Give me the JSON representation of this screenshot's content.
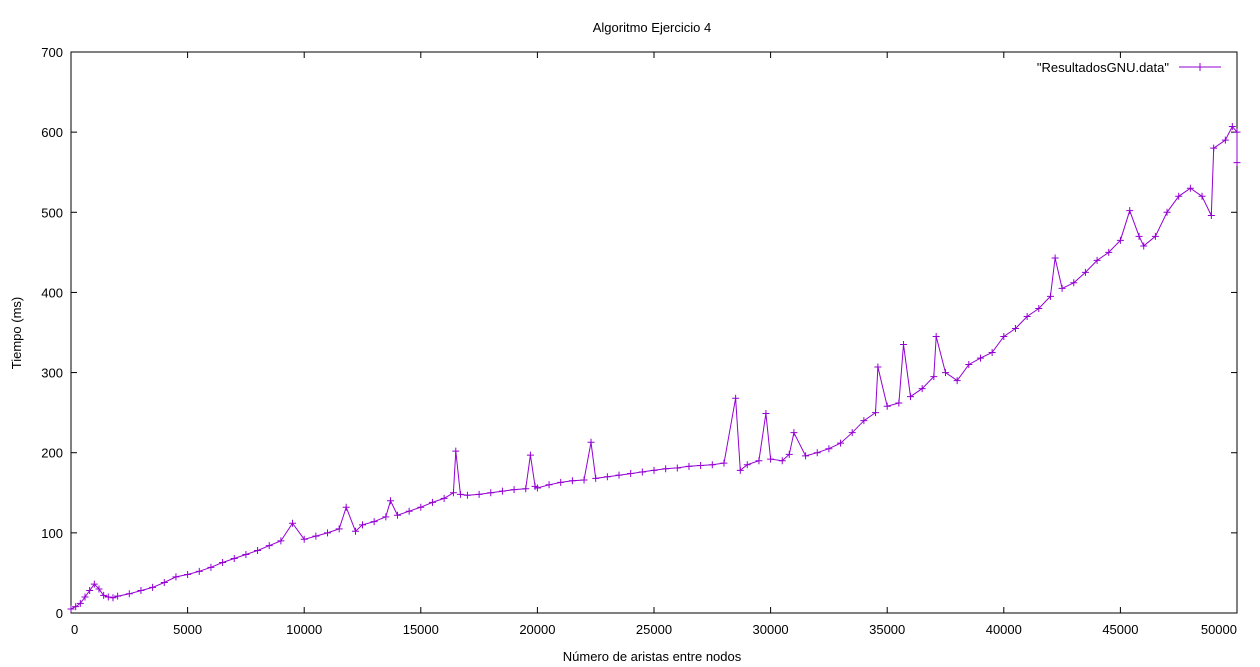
{
  "chart_data": {
    "type": "line",
    "title": "Algoritmo Ejercicio 4",
    "xlabel": "Número de aristas entre nodos",
    "ylabel": "Tiempo (ms)",
    "xlim": [
      0,
      50000
    ],
    "ylim": [
      0,
      700
    ],
    "x_ticks": [
      0,
      5000,
      10000,
      15000,
      20000,
      25000,
      30000,
      35000,
      40000,
      45000,
      50000
    ],
    "y_ticks": [
      0,
      100,
      200,
      300,
      400,
      500,
      600,
      700
    ],
    "grid": false,
    "legend_position": "top-right",
    "series": [
      {
        "name": "\"ResultadosGNU.data\"",
        "color": "#9400d3",
        "marker": "plus",
        "points": [
          [
            0,
            5
          ],
          [
            200,
            8
          ],
          [
            400,
            12
          ],
          [
            600,
            20
          ],
          [
            800,
            28
          ],
          [
            1000,
            36
          ],
          [
            1200,
            30
          ],
          [
            1400,
            22
          ],
          [
            1600,
            20
          ],
          [
            1800,
            19
          ],
          [
            2000,
            21
          ],
          [
            2500,
            24
          ],
          [
            3000,
            28
          ],
          [
            3500,
            32
          ],
          [
            4000,
            38
          ],
          [
            4500,
            45
          ],
          [
            5000,
            48
          ],
          [
            5500,
            52
          ],
          [
            6000,
            57
          ],
          [
            6500,
            63
          ],
          [
            7000,
            68
          ],
          [
            7500,
            73
          ],
          [
            8000,
            78
          ],
          [
            8500,
            84
          ],
          [
            9000,
            90
          ],
          [
            9500,
            112
          ],
          [
            10000,
            92
          ],
          [
            10500,
            96
          ],
          [
            11000,
            100
          ],
          [
            11500,
            105
          ],
          [
            11800,
            132
          ],
          [
            12200,
            102
          ],
          [
            12500,
            110
          ],
          [
            13000,
            114
          ],
          [
            13500,
            120
          ],
          [
            13700,
            140
          ],
          [
            14000,
            122
          ],
          [
            14500,
            127
          ],
          [
            15000,
            132
          ],
          [
            15500,
            138
          ],
          [
            16000,
            143
          ],
          [
            16400,
            150
          ],
          [
            16500,
            202
          ],
          [
            16700,
            148
          ],
          [
            17000,
            147
          ],
          [
            17500,
            148
          ],
          [
            18000,
            150
          ],
          [
            18500,
            152
          ],
          [
            19000,
            154
          ],
          [
            19500,
            155
          ],
          [
            19700,
            197
          ],
          [
            19900,
            158
          ],
          [
            20000,
            156
          ],
          [
            20500,
            160
          ],
          [
            21000,
            163
          ],
          [
            21500,
            165
          ],
          [
            22000,
            166
          ],
          [
            22300,
            213
          ],
          [
            22500,
            168
          ],
          [
            23000,
            170
          ],
          [
            23500,
            172
          ],
          [
            24000,
            174
          ],
          [
            24500,
            176
          ],
          [
            25000,
            178
          ],
          [
            25500,
            180
          ],
          [
            26000,
            181
          ],
          [
            26500,
            183
          ],
          [
            27000,
            184
          ],
          [
            27500,
            185
          ],
          [
            28000,
            187
          ],
          [
            28500,
            268
          ],
          [
            28700,
            178
          ],
          [
            29000,
            185
          ],
          [
            29500,
            190
          ],
          [
            29800,
            249
          ],
          [
            30000,
            192
          ],
          [
            30500,
            190
          ],
          [
            30800,
            198
          ],
          [
            31000,
            225
          ],
          [
            31500,
            196
          ],
          [
            32000,
            200
          ],
          [
            32500,
            205
          ],
          [
            33000,
            212
          ],
          [
            33500,
            225
          ],
          [
            34000,
            240
          ],
          [
            34500,
            250
          ],
          [
            34600,
            307
          ],
          [
            35000,
            258
          ],
          [
            35500,
            262
          ],
          [
            35700,
            335
          ],
          [
            36000,
            270
          ],
          [
            36500,
            280
          ],
          [
            37000,
            295
          ],
          [
            37100,
            345
          ],
          [
            37500,
            300
          ],
          [
            38000,
            290
          ],
          [
            38500,
            310
          ],
          [
            39000,
            318
          ],
          [
            39500,
            325
          ],
          [
            40000,
            345
          ],
          [
            40500,
            355
          ],
          [
            41000,
            370
          ],
          [
            41500,
            380
          ],
          [
            42000,
            395
          ],
          [
            42200,
            443
          ],
          [
            42500,
            405
          ],
          [
            43000,
            412
          ],
          [
            43500,
            425
          ],
          [
            44000,
            440
          ],
          [
            44500,
            450
          ],
          [
            45000,
            465
          ],
          [
            45400,
            502
          ],
          [
            45800,
            470
          ],
          [
            46000,
            458
          ],
          [
            46500,
            470
          ],
          [
            47000,
            500
          ],
          [
            47500,
            520
          ],
          [
            48000,
            530
          ],
          [
            48500,
            520
          ],
          [
            48900,
            496
          ],
          [
            49000,
            580
          ],
          [
            49500,
            590
          ],
          [
            49800,
            607
          ],
          [
            50000,
            600
          ],
          [
            50000,
            562
          ]
        ]
      }
    ]
  }
}
